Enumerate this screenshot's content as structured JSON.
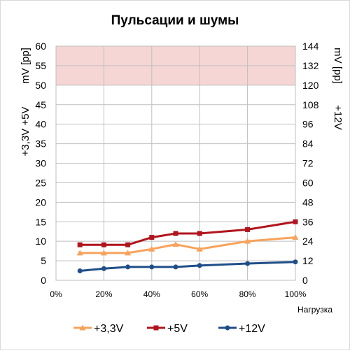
{
  "chart_data": {
    "type": "line",
    "title": "Пульсации и шумы",
    "xlabel": "Нагрузка",
    "ylabel_left": "+3,3V +5V",
    "ylabel_left_unit": "mV [pp]",
    "ylabel_right": "+12V",
    "ylabel_right_unit": "mV [pp]",
    "x_ticks": [
      "0%",
      "20%",
      "40%",
      "60%",
      "80%",
      "100%"
    ],
    "y_left_ticks": [
      "0",
      "5",
      "10",
      "15",
      "20",
      "25",
      "30",
      "35",
      "40",
      "45",
      "50",
      "55",
      "60"
    ],
    "y_right_ticks": [
      "0",
      "12",
      "24",
      "36",
      "48",
      "60",
      "72",
      "84",
      "96",
      "108",
      "120",
      "132",
      "144"
    ],
    "xlim": [
      0,
      100
    ],
    "ylim_left": [
      0,
      60
    ],
    "ylim_right": [
      0,
      144
    ],
    "limit_band_left": [
      50,
      60
    ],
    "limit_band_color": "#f6d5d5",
    "grid": true,
    "legend_position": "bottom",
    "x": [
      10,
      20,
      30,
      40,
      50,
      60,
      80,
      100
    ],
    "series": [
      {
        "name": "+3,3V",
        "axis": "left",
        "color": "#f7a35c",
        "marker": "triangle",
        "values": [
          7,
          7,
          7,
          8,
          9.2,
          8,
          10,
          11
        ]
      },
      {
        "name": "+5V",
        "axis": "left",
        "color": "#b0151d",
        "marker": "square",
        "values": [
          9.1,
          9.1,
          9.1,
          11,
          12,
          12,
          13,
          15
        ]
      },
      {
        "name": "+12V",
        "axis": "right",
        "color": "#1f4e89",
        "marker": "circle",
        "values": [
          5.8,
          7.2,
          8.2,
          8.2,
          8.2,
          9.1,
          10.3,
          11.3
        ]
      }
    ]
  }
}
